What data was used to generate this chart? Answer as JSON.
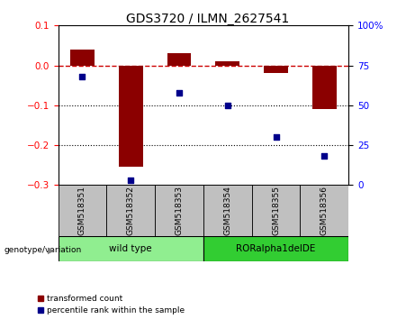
{
  "title": "GDS3720 / ILMN_2627541",
  "samples": [
    "GSM518351",
    "GSM518352",
    "GSM518353",
    "GSM518354",
    "GSM518355",
    "GSM518356"
  ],
  "red_values": [
    0.04,
    -0.255,
    0.03,
    0.01,
    -0.02,
    -0.11
  ],
  "blue_values": [
    68,
    3,
    58,
    50,
    30,
    18
  ],
  "ylim_left": [
    -0.3,
    0.1
  ],
  "ylim_right": [
    0,
    100
  ],
  "yticks_left": [
    -0.3,
    -0.2,
    -0.1,
    0.0,
    0.1
  ],
  "yticks_right": [
    0,
    25,
    50,
    75,
    100
  ],
  "ytick_labels_right": [
    "0",
    "25",
    "50",
    "75",
    "100%"
  ],
  "groups": [
    {
      "label": "wild type",
      "indices": [
        0,
        1,
        2
      ],
      "color": "#90EE90"
    },
    {
      "label": "RORalpha1delDE",
      "indices": [
        3,
        4,
        5
      ],
      "color": "#32CD32"
    }
  ],
  "genotype_label": "genotype/variation",
  "legend_red": "transformed count",
  "legend_blue": "percentile rank within the sample",
  "bar_color": "#8B0000",
  "dot_color": "#00008B",
  "hline_color": "#CC0000",
  "grid_color": "#000000",
  "sample_box_color": "#C0C0C0",
  "bar_width": 0.5
}
